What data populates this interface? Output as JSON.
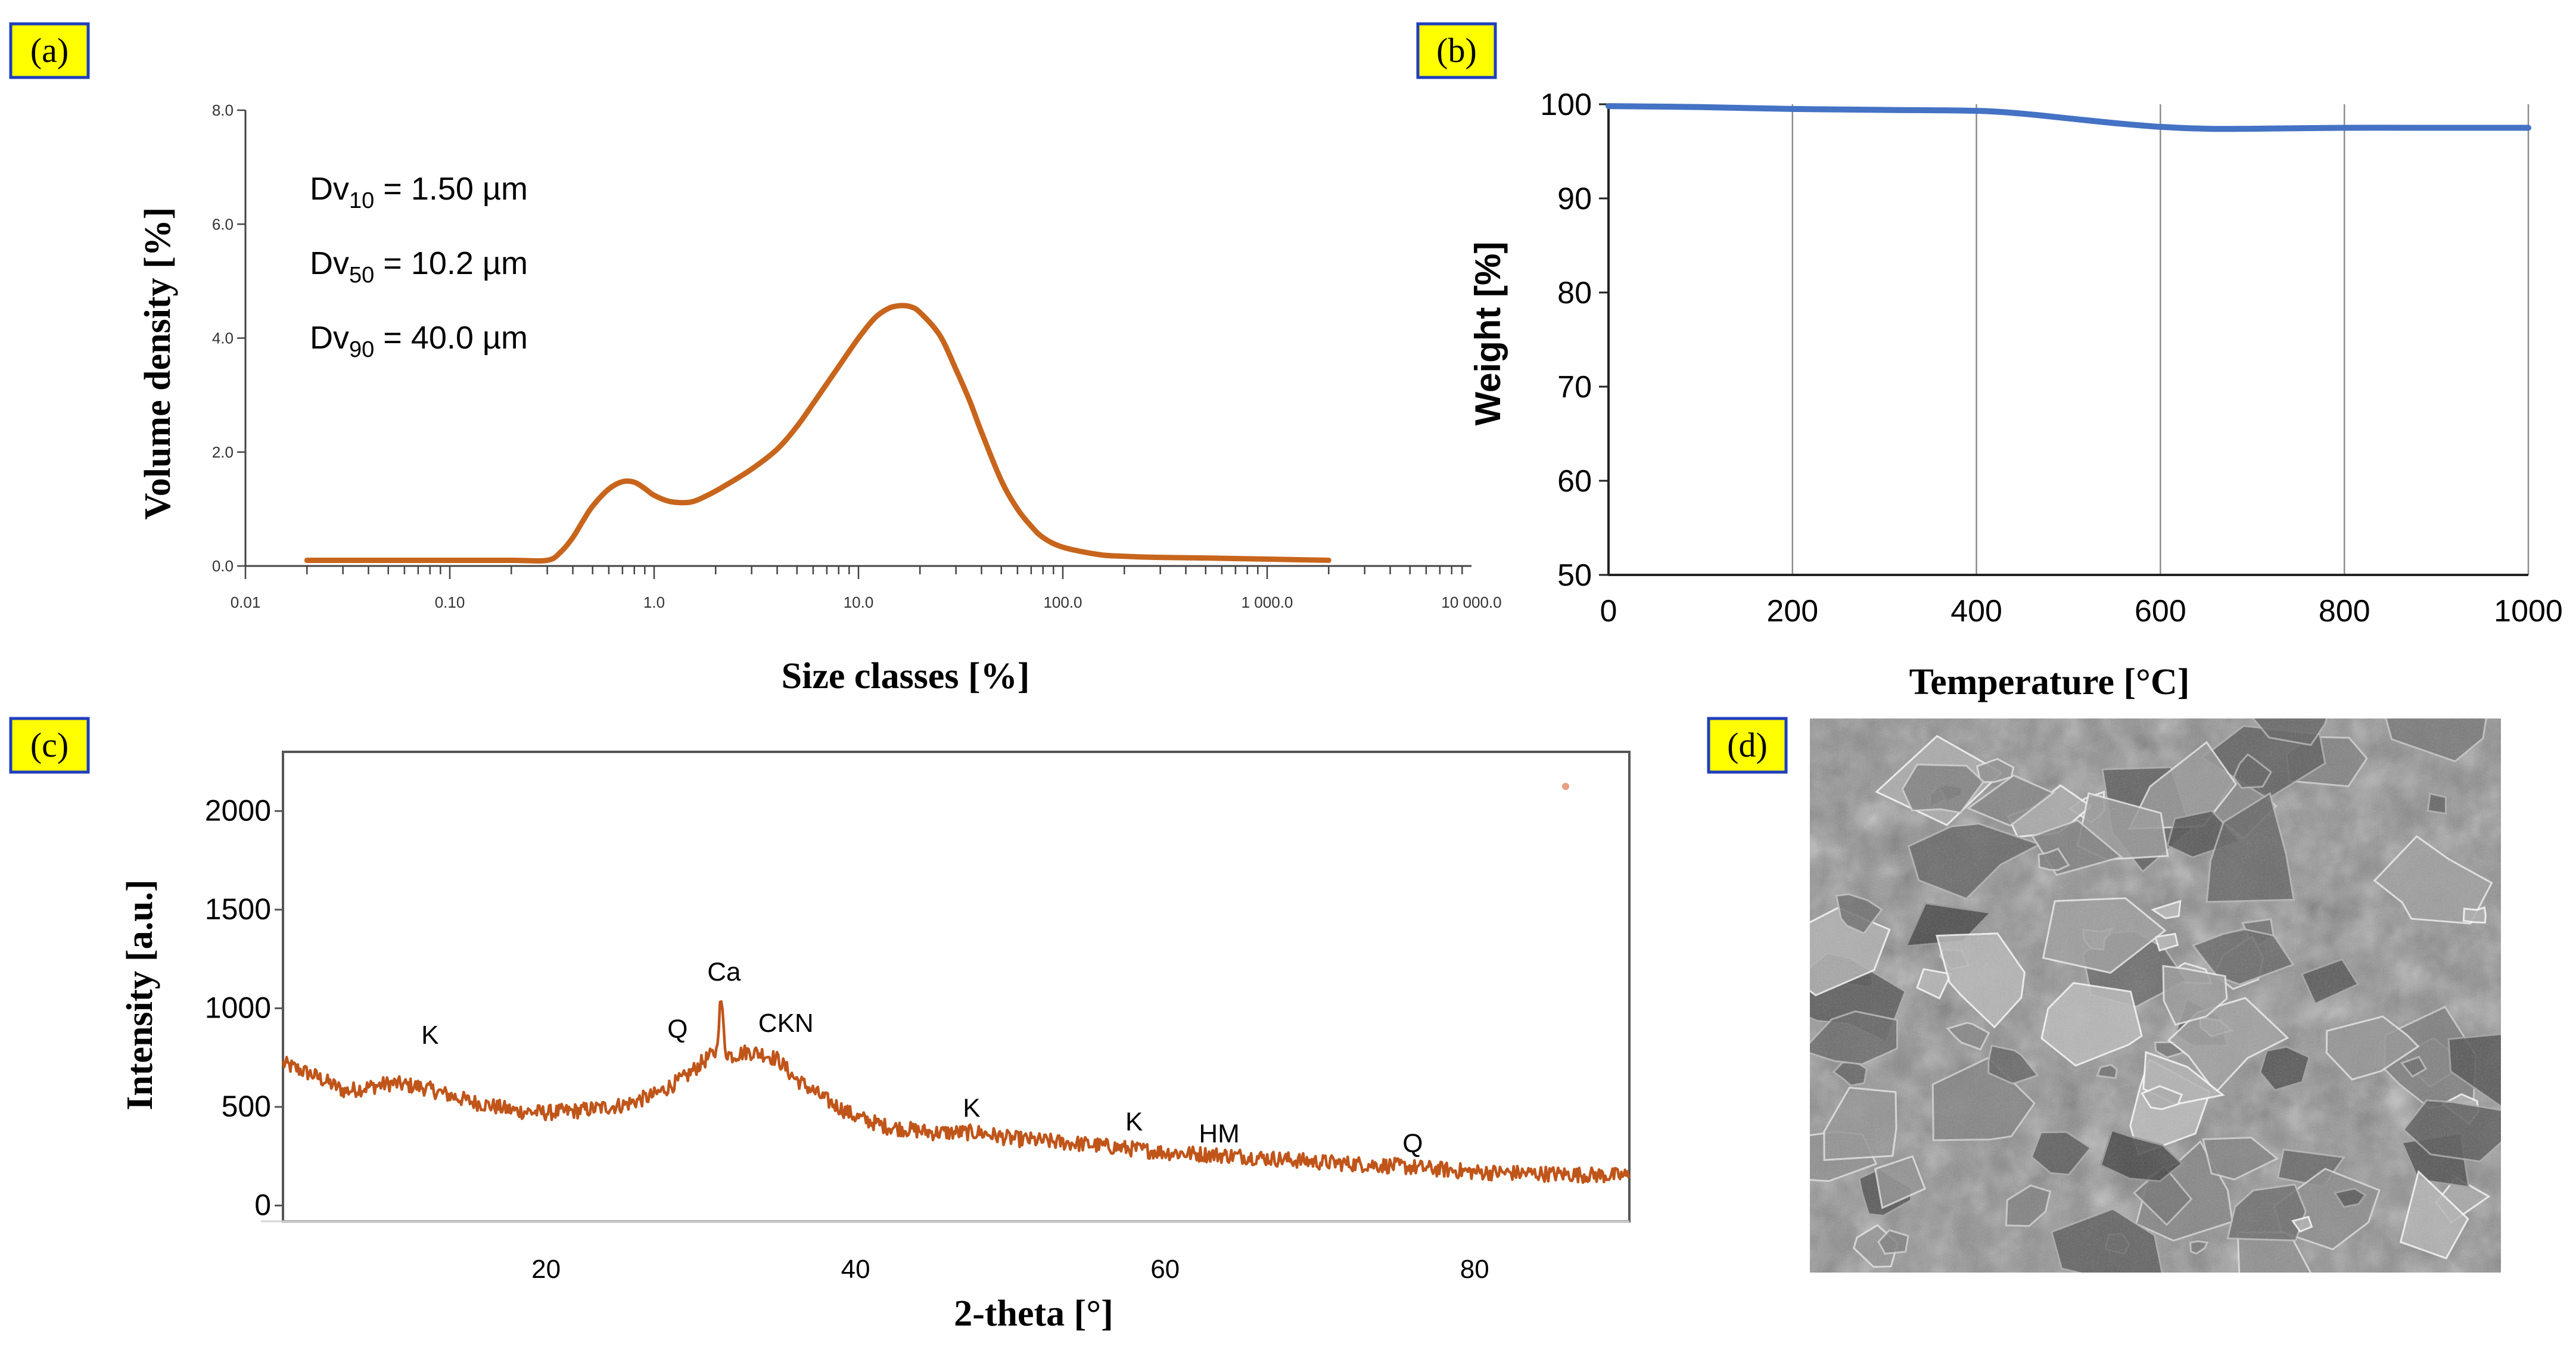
{
  "panels": {
    "a": "(a)",
    "b": "(b)",
    "c": "(c)",
    "d": "(d)"
  },
  "colors": {
    "label_bg": "#ffff00",
    "label_border": "#1f3fbf",
    "psd_line": "#c8651c",
    "tga_line": "#4472c4",
    "xrd_line": "#c0551a"
  },
  "chart_data": [
    {
      "id": "a",
      "type": "line",
      "xscale": "log",
      "xlabel": "Size classes [%]",
      "ylabel": "Volume density [%]",
      "xlim": [
        0.01,
        10000
      ],
      "ylim": [
        0,
        8
      ],
      "xticks": [
        "0.01",
        "0.10",
        "1.0",
        "10.0",
        "100.0",
        "1 000.0",
        "10 000.0"
      ],
      "xtick_values": [
        0.01,
        0.1,
        1,
        10,
        100,
        1000,
        10000
      ],
      "yticks": [
        "0.0",
        "2.0",
        "4.0",
        "6.0",
        "8.0"
      ],
      "ytick_values": [
        0,
        2,
        4,
        6,
        8
      ],
      "annotations": [
        {
          "base": "Dv",
          "sub": "10",
          "rest": " = 1.50 µm"
        },
        {
          "base": "Dv",
          "sub": "50",
          "rest": " = 10.2 µm"
        },
        {
          "base": "Dv",
          "sub": "90",
          "rest": " = 40.0 µm"
        }
      ],
      "x": [
        0.02,
        0.1,
        0.2,
        0.3,
        0.35,
        0.4,
        0.45,
        0.5,
        0.6,
        0.7,
        0.8,
        0.9,
        1.0,
        1.2,
        1.5,
        1.8,
        2.2,
        3,
        4,
        5,
        6,
        8,
        10,
        12,
        14,
        16,
        18,
        20,
        25,
        30,
        35,
        40,
        50,
        60,
        70,
        80,
        100,
        150,
        200,
        300,
        500,
        1000,
        2000
      ],
      "y": [
        0.1,
        0.1,
        0.1,
        0.1,
        0.25,
        0.5,
        0.8,
        1.05,
        1.35,
        1.48,
        1.47,
        1.36,
        1.24,
        1.13,
        1.12,
        1.23,
        1.4,
        1.7,
        2.05,
        2.45,
        2.85,
        3.5,
        4.0,
        4.35,
        4.52,
        4.57,
        4.55,
        4.45,
        4.05,
        3.45,
        2.9,
        2.35,
        1.5,
        1.0,
        0.7,
        0.5,
        0.33,
        0.2,
        0.17,
        0.15,
        0.14,
        0.12,
        0.1
      ]
    },
    {
      "id": "b",
      "type": "line",
      "xlabel": "Temperature [°C]",
      "ylabel": "Weight [%]",
      "xlim": [
        0,
        1000
      ],
      "ylim": [
        50,
        100
      ],
      "xticks": [
        "0",
        "200",
        "400",
        "600",
        "800",
        "1000"
      ],
      "xtick_values": [
        0,
        200,
        400,
        600,
        800,
        1000
      ],
      "yticks": [
        "50",
        "60",
        "70",
        "80",
        "90",
        "100"
      ],
      "ytick_values": [
        50,
        60,
        70,
        80,
        90,
        100
      ],
      "grid": "vertical",
      "x": [
        0,
        100,
        200,
        300,
        400,
        450,
        500,
        550,
        600,
        650,
        700,
        800,
        900,
        1000
      ],
      "y": [
        99.8,
        99.7,
        99.5,
        99.4,
        99.3,
        99.0,
        98.5,
        98.0,
        97.6,
        97.4,
        97.4,
        97.5,
        97.5,
        97.5
      ]
    },
    {
      "id": "c",
      "type": "line",
      "xlabel": "2-theta [°]",
      "ylabel": "Intensity [a.u.]",
      "xlim": [
        3,
        90
      ],
      "ylim": [
        -80,
        2300
      ],
      "xticks": [
        "20",
        "40",
        "60",
        "80"
      ],
      "xtick_values": [
        20,
        40,
        60,
        80
      ],
      "yticks": [
        "0",
        "500",
        "1000",
        "1500",
        "2000"
      ],
      "ytick_values": [
        0,
        500,
        1000,
        1500,
        2000
      ],
      "peak_labels": [
        {
          "label": "K",
          "x": 12.5,
          "y": 820
        },
        {
          "label": "Q",
          "x": 28.5,
          "y": 850
        },
        {
          "label": "Ca",
          "x": 31.5,
          "y": 1140
        },
        {
          "label": "CKN",
          "x": 35.5,
          "y": 880
        },
        {
          "label": "K",
          "x": 47.5,
          "y": 450
        },
        {
          "label": "K",
          "x": 58,
          "y": 380
        },
        {
          "label": "HM",
          "x": 63.5,
          "y": 320
        },
        {
          "label": "Q",
          "x": 76,
          "y": 270
        }
      ],
      "x": [
        3,
        5,
        7,
        10,
        12,
        15,
        18,
        20,
        22,
        25,
        27,
        29,
        30,
        31,
        31.3,
        31.6,
        32,
        33,
        34,
        35,
        36,
        38,
        40,
        42,
        45,
        48,
        50,
        55,
        60,
        65,
        70,
        75,
        80,
        85,
        90
      ],
      "y": [
        720,
        660,
        580,
        620,
        600,
        530,
        480,
        470,
        480,
        510,
        560,
        650,
        720,
        780,
        1060,
        780,
        760,
        780,
        770,
        740,
        650,
        540,
        450,
        400,
        370,
        370,
        340,
        310,
        270,
        250,
        220,
        200,
        170,
        160,
        150
      ]
    }
  ]
}
